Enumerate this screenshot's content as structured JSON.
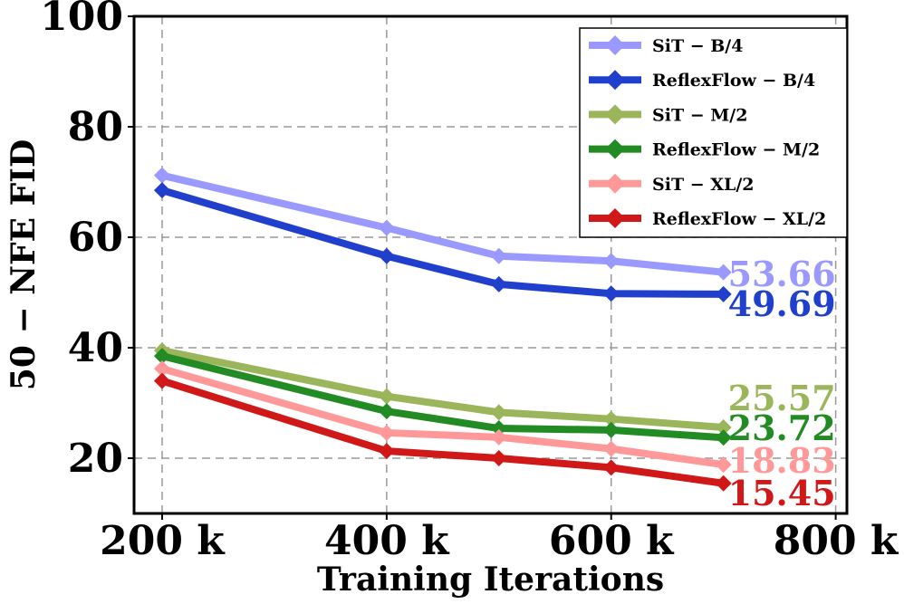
{
  "chart_data": {
    "type": "line",
    "title": "",
    "xlabel": "Training Iterations",
    "ylabel": "50 − NFE FID",
    "xlim": [
      175,
      810
    ],
    "ylim": [
      10,
      100
    ],
    "xticks": [
      200,
      400,
      600,
      800
    ],
    "xtick_labels": [
      "200 k",
      "400 k",
      "600 k",
      "800 k"
    ],
    "yticks": [
      20,
      40,
      60,
      80,
      100
    ],
    "ytick_labels": [
      "20",
      "40",
      "60",
      "80",
      "100"
    ],
    "grid": true,
    "legend_position": "top-right",
    "x": [
      200,
      400,
      500,
      600,
      700
    ],
    "series": [
      {
        "name": "SiT − B/4",
        "color": "#9999ff",
        "values": [
          71.2,
          61.7,
          56.6,
          55.7,
          53.66
        ],
        "end_label": "53.66"
      },
      {
        "name": "ReflexFlow − B/4",
        "color": "#1f3fcc",
        "values": [
          68.5,
          56.6,
          51.5,
          49.8,
          49.69
        ],
        "end_label": "49.69"
      },
      {
        "name": "SiT − M/2",
        "color": "#9bb55a",
        "values": [
          39.5,
          31.2,
          28.3,
          27.1,
          25.57
        ],
        "end_label": "25.57"
      },
      {
        "name": "ReflexFlow − M/2",
        "color": "#238b23",
        "values": [
          38.5,
          28.5,
          25.4,
          25.1,
          23.72
        ],
        "end_label": "23.72"
      },
      {
        "name": "SiT − XL/2",
        "color": "#ff9999",
        "values": [
          36.2,
          24.6,
          23.8,
          21.7,
          18.83
        ],
        "end_label": "18.83"
      },
      {
        "name": "ReflexFlow − XL/2",
        "color": "#d01818",
        "values": [
          34.0,
          21.3,
          20.0,
          18.3,
          15.45
        ],
        "end_label": "15.45"
      }
    ]
  }
}
